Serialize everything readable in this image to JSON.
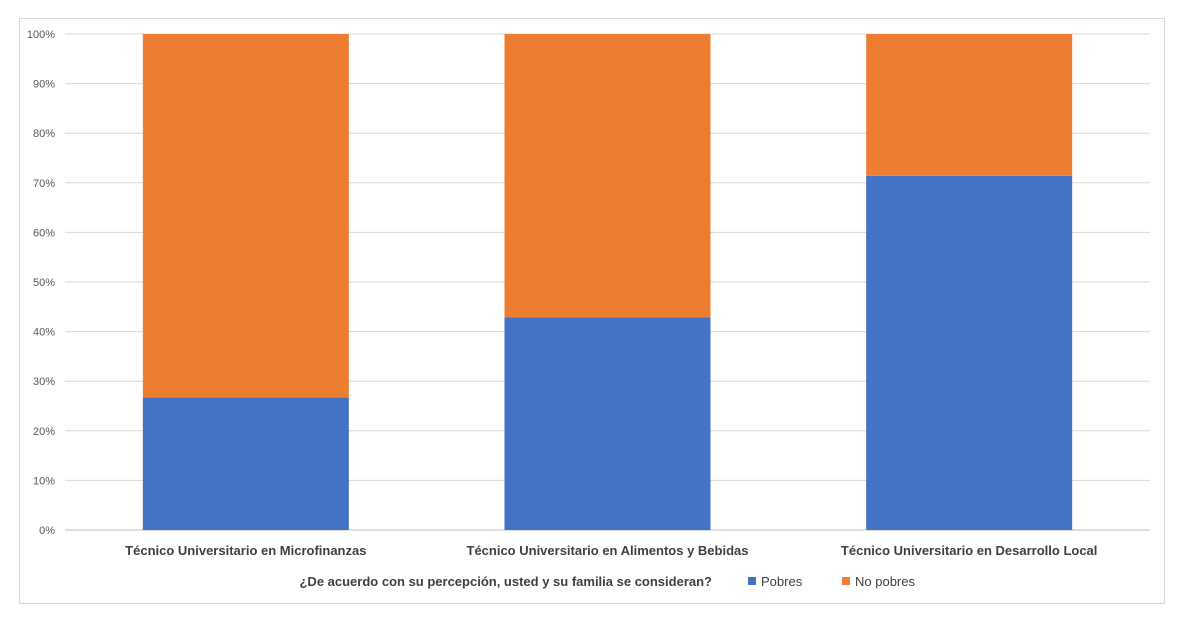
{
  "chart_data": {
    "type": "bar",
    "stacked": true,
    "percent": true,
    "categories": [
      "Técnico Universitario en Microfinanzas",
      "Técnico Universitario en Alimentos y Bebidas",
      "Técnico Universitario en Desarrollo Local"
    ],
    "series": [
      {
        "name": "Pobres",
        "color": "#4472c4",
        "values": [
          26.7,
          42.9,
          71.4
        ]
      },
      {
        "name": "No pobres",
        "color": "#ed7d31",
        "values": [
          73.3,
          57.1,
          28.6
        ]
      }
    ],
    "ylim": [
      0,
      100
    ],
    "yticks": [
      "0%",
      "10%",
      "20%",
      "30%",
      "40%",
      "50%",
      "60%",
      "70%",
      "80%",
      "90%",
      "100%"
    ],
    "grid": true,
    "legend": {
      "position": "bottom",
      "title": "¿De acuerdo con su percepción, usted y su familia se consideran?"
    }
  }
}
